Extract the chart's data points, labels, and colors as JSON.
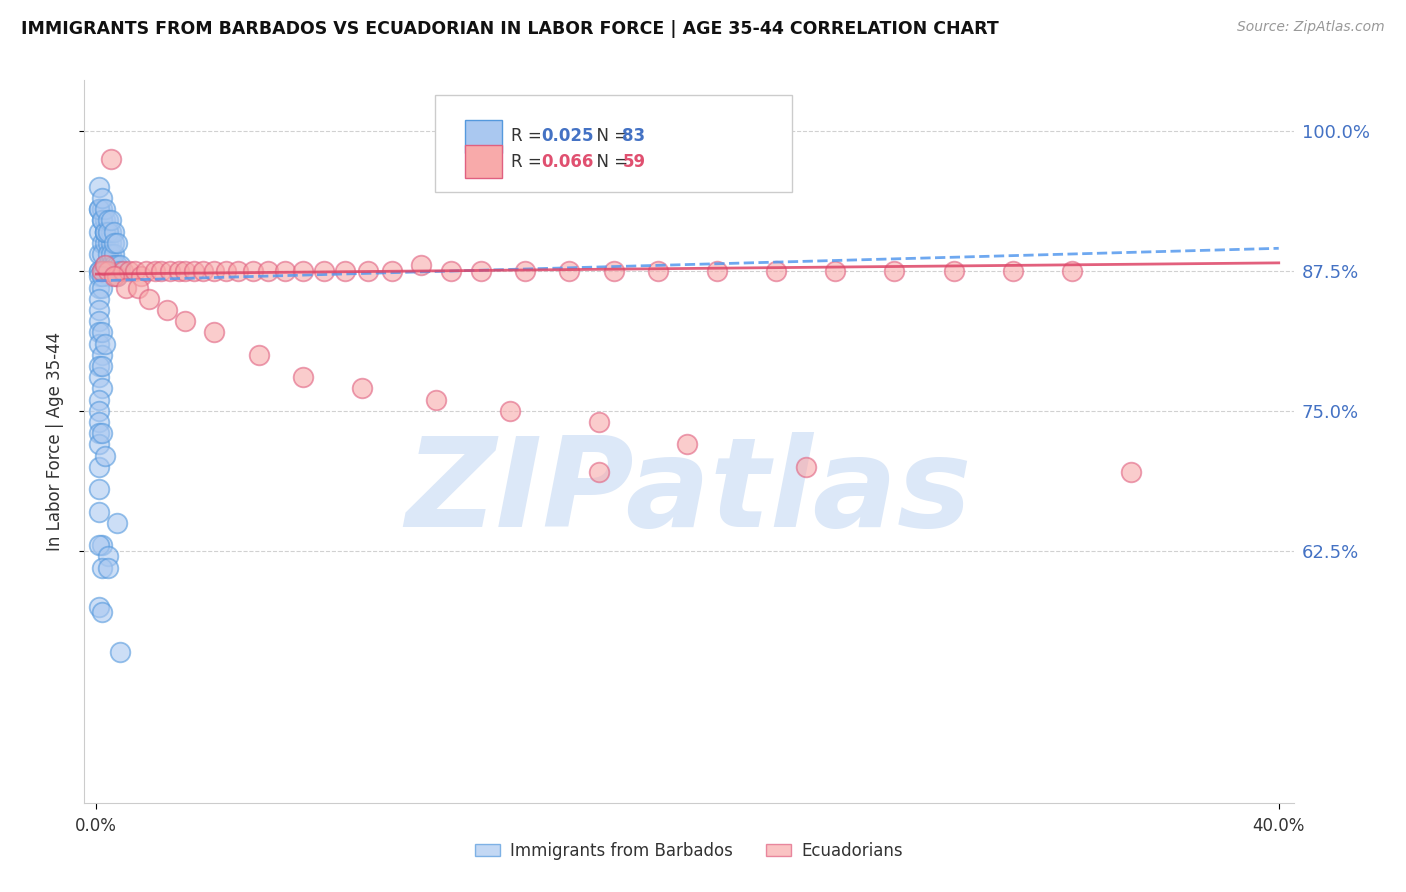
{
  "title": "IMMIGRANTS FROM BARBADOS VS ECUADORIAN IN LABOR FORCE | AGE 35-44 CORRELATION CHART",
  "source": "Source: ZipAtlas.com",
  "ylabel": "In Labor Force | Age 35-44",
  "xlim_min": -0.004,
  "xlim_max": 0.405,
  "ylim_min": 0.4,
  "ylim_max": 1.045,
  "ytick_vals": [
    0.625,
    0.75,
    0.875,
    1.0
  ],
  "ytick_labels": [
    "62.5%",
    "75.0%",
    "87.5%",
    "100.0%"
  ],
  "barbados_R": 0.025,
  "barbados_N": 83,
  "ecuadorian_R": 0.066,
  "ecuadorian_N": 59,
  "blue_face": "#aac8f0",
  "blue_edge": "#5599dd",
  "pink_face": "#f8aaaa",
  "pink_edge": "#e06080",
  "trend_blue_color": "#5599ee",
  "trend_pink_color": "#dd4466",
  "blue_trend_x": [
    0.0,
    0.4
  ],
  "blue_trend_y": [
    0.866,
    0.895
  ],
  "pink_trend_x": [
    0.0,
    0.4
  ],
  "pink_trend_y": [
    0.872,
    0.882
  ],
  "watermark": "ZIPatlas",
  "watermark_color": "#dce8f8",
  "background_color": "#ffffff",
  "grid_color": "#cccccc",
  "blue_x": [
    0.001,
    0.001,
    0.001,
    0.002,
    0.002,
    0.002,
    0.003,
    0.003,
    0.003,
    0.004,
    0.004,
    0.004,
    0.004,
    0.005,
    0.005,
    0.005,
    0.005,
    0.006,
    0.006,
    0.006,
    0.007,
    0.007,
    0.007,
    0.008,
    0.008,
    0.002,
    0.003,
    0.003,
    0.004,
    0.005,
    0.001,
    0.001,
    0.002,
    0.002,
    0.003,
    0.003,
    0.004,
    0.004,
    0.005,
    0.006,
    0.006,
    0.007,
    0.001,
    0.001,
    0.002,
    0.002,
    0.003,
    0.003,
    0.001,
    0.001,
    0.002,
    0.002,
    0.001,
    0.001,
    0.001,
    0.001,
    0.001,
    0.002,
    0.002,
    0.003,
    0.001,
    0.001,
    0.002,
    0.002,
    0.001,
    0.001,
    0.001,
    0.001,
    0.001,
    0.002,
    0.001,
    0.003,
    0.001,
    0.001,
    0.007,
    0.002,
    0.001,
    0.004,
    0.002,
    0.004,
    0.001,
    0.002,
    0.008
  ],
  "blue_y": [
    0.93,
    0.91,
    0.89,
    0.92,
    0.9,
    0.89,
    0.91,
    0.9,
    0.88,
    0.9,
    0.89,
    0.88,
    0.87,
    0.9,
    0.89,
    0.88,
    0.875,
    0.89,
    0.88,
    0.875,
    0.88,
    0.875,
    0.87,
    0.88,
    0.875,
    0.93,
    0.92,
    0.91,
    0.91,
    0.91,
    0.95,
    0.93,
    0.94,
    0.92,
    0.93,
    0.91,
    0.92,
    0.91,
    0.92,
    0.91,
    0.9,
    0.9,
    0.875,
    0.875,
    0.875,
    0.875,
    0.875,
    0.875,
    0.87,
    0.86,
    0.87,
    0.86,
    0.85,
    0.84,
    0.83,
    0.82,
    0.81,
    0.82,
    0.8,
    0.81,
    0.79,
    0.78,
    0.79,
    0.77,
    0.76,
    0.75,
    0.74,
    0.73,
    0.72,
    0.73,
    0.7,
    0.71,
    0.68,
    0.66,
    0.65,
    0.63,
    0.63,
    0.62,
    0.61,
    0.61,
    0.575,
    0.57,
    0.535
  ],
  "pink_x": [
    0.002,
    0.004,
    0.007,
    0.009,
    0.011,
    0.013,
    0.015,
    0.017,
    0.02,
    0.022,
    0.025,
    0.028,
    0.03,
    0.033,
    0.036,
    0.04,
    0.044,
    0.048,
    0.053,
    0.058,
    0.064,
    0.07,
    0.077,
    0.084,
    0.092,
    0.1,
    0.11,
    0.12,
    0.13,
    0.145,
    0.16,
    0.175,
    0.19,
    0.21,
    0.23,
    0.25,
    0.27,
    0.29,
    0.31,
    0.33,
    0.35,
    0.003,
    0.006,
    0.01,
    0.014,
    0.018,
    0.024,
    0.03,
    0.04,
    0.055,
    0.07,
    0.09,
    0.115,
    0.14,
    0.17,
    0.2,
    0.24,
    0.17,
    0.005
  ],
  "pink_y": [
    0.875,
    0.875,
    0.87,
    0.875,
    0.875,
    0.875,
    0.87,
    0.875,
    0.875,
    0.875,
    0.875,
    0.875,
    0.875,
    0.875,
    0.875,
    0.875,
    0.875,
    0.875,
    0.875,
    0.875,
    0.875,
    0.875,
    0.875,
    0.875,
    0.875,
    0.875,
    0.88,
    0.875,
    0.875,
    0.875,
    0.875,
    0.875,
    0.875,
    0.875,
    0.875,
    0.875,
    0.875,
    0.875,
    0.875,
    0.875,
    0.695,
    0.88,
    0.87,
    0.86,
    0.86,
    0.85,
    0.84,
    0.83,
    0.82,
    0.8,
    0.78,
    0.77,
    0.76,
    0.75,
    0.74,
    0.72,
    0.7,
    0.695,
    0.975
  ]
}
